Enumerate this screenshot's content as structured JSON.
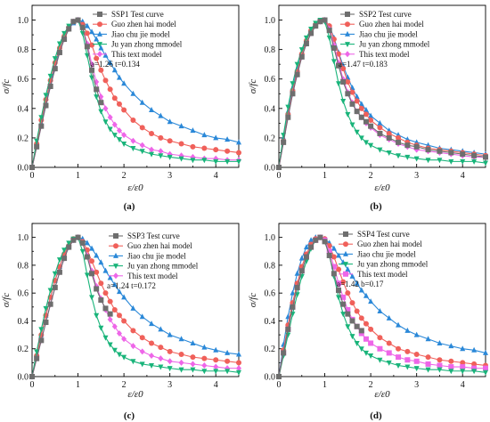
{
  "figure": {
    "colors": {
      "test": "#6e6e6e",
      "guo": "#f0605a",
      "jiao": "#2a88d8",
      "ju": "#19b47a",
      "this": "#ee66e8"
    }
  },
  "chart_data": [
    {
      "type": "line",
      "panel_label": "(a)",
      "xlabel": "ε/ε0",
      "ylabel": "σ/fc",
      "xlim": [
        0,
        4.5
      ],
      "ylim": [
        0,
        1.1
      ],
      "xticks": [
        "0",
        "1",
        "2",
        "3",
        "4"
      ],
      "yticks": [
        "0.0",
        "0.2",
        "0.4",
        "0.6",
        "0.8",
        "1.0"
      ],
      "legend_position": "top-right",
      "params_text": "a=1.26  t=0.134",
      "x": [
        0,
        0.1,
        0.2,
        0.3,
        0.4,
        0.5,
        0.6,
        0.7,
        0.8,
        0.9,
        1.0,
        1.1,
        1.2,
        1.3,
        1.4,
        1.5,
        1.6,
        1.7,
        1.8,
        1.9,
        2.0,
        2.2,
        2.4,
        2.6,
        2.8,
        3.0,
        3.25,
        3.5,
        3.75,
        4.0,
        4.25,
        4.5
      ],
      "series": [
        {
          "name": "SSP1 Test curve",
          "color_key": "test",
          "marker": "square",
          "x": [
            0,
            0.1,
            0.2,
            0.3,
            0.4,
            0.5,
            0.6,
            0.7,
            0.8,
            0.9,
            1.0,
            1.1,
            1.2,
            1.3,
            1.4,
            1.5
          ],
          "values": [
            0,
            0.14,
            0.28,
            0.42,
            0.55,
            0.67,
            0.78,
            0.87,
            0.94,
            0.99,
            1.0,
            0.95,
            0.82,
            0.66,
            0.53,
            0.44
          ]
        },
        {
          "name": "Guo zhen hai model",
          "color_key": "guo",
          "marker": "circle",
          "values": [
            0,
            0.16,
            0.32,
            0.46,
            0.59,
            0.71,
            0.81,
            0.89,
            0.95,
            0.99,
            1.0,
            0.97,
            0.91,
            0.83,
            0.74,
            0.66,
            0.59,
            0.53,
            0.47,
            0.43,
            0.39,
            0.32,
            0.27,
            0.23,
            0.2,
            0.18,
            0.16,
            0.14,
            0.13,
            0.12,
            0.11,
            0.1
          ]
        },
        {
          "name": "Jiao chu jie model",
          "color_key": "jiao",
          "marker": "triangle-up",
          "values": [
            0,
            0.15,
            0.3,
            0.44,
            0.57,
            0.69,
            0.79,
            0.87,
            0.94,
            0.98,
            1.0,
            0.99,
            0.96,
            0.92,
            0.87,
            0.81,
            0.76,
            0.71,
            0.66,
            0.61,
            0.57,
            0.5,
            0.44,
            0.39,
            0.35,
            0.31,
            0.28,
            0.25,
            0.22,
            0.2,
            0.19,
            0.17
          ]
        },
        {
          "name": "Ju yan zhong mmodel",
          "color_key": "ju",
          "marker": "triangle-down",
          "values": [
            0,
            0.18,
            0.34,
            0.49,
            0.62,
            0.74,
            0.84,
            0.91,
            0.96,
            0.99,
            1.0,
            0.91,
            0.76,
            0.61,
            0.48,
            0.38,
            0.31,
            0.26,
            0.22,
            0.19,
            0.16,
            0.13,
            0.11,
            0.09,
            0.08,
            0.07,
            0.06,
            0.05,
            0.05,
            0.04,
            0.04,
            0.04
          ]
        },
        {
          "name": "This text model",
          "color_key": "this",
          "marker": "diamond",
          "values": [
            0,
            0.14,
            0.28,
            0.42,
            0.55,
            0.67,
            0.78,
            0.87,
            0.94,
            0.99,
            1.0,
            0.95,
            0.84,
            0.7,
            0.58,
            0.48,
            0.4,
            0.34,
            0.29,
            0.25,
            0.22,
            0.18,
            0.15,
            0.12,
            0.11,
            0.09,
            0.08,
            0.07,
            0.06,
            0.06,
            0.05,
            0.05
          ]
        }
      ]
    },
    {
      "type": "line",
      "panel_label": "(b)",
      "xlabel": "ε/ε0",
      "ylabel": "σ/fc",
      "xlim": [
        0,
        4.5
      ],
      "ylim": [
        0,
        1.1
      ],
      "xticks": [
        "0",
        "1",
        "2",
        "3",
        "4"
      ],
      "yticks": [
        "0.0",
        "0.2",
        "0.4",
        "0.6",
        "0.8",
        "1.0"
      ],
      "legend_position": "top-right",
      "params_text": "a=1.47  t=0.183",
      "x": [
        0,
        0.1,
        0.2,
        0.3,
        0.4,
        0.5,
        0.6,
        0.7,
        0.8,
        0.9,
        1.0,
        1.1,
        1.2,
        1.3,
        1.4,
        1.5,
        1.6,
        1.7,
        1.8,
        1.9,
        2.0,
        2.2,
        2.4,
        2.6,
        2.8,
        3.0,
        3.25,
        3.5,
        3.75,
        4.0,
        4.25,
        4.5
      ],
      "series": [
        {
          "name": "SSP2 Test curve",
          "color_key": "test",
          "marker": "square",
          "values": [
            0,
            0.17,
            0.34,
            0.5,
            0.63,
            0.75,
            0.84,
            0.91,
            0.96,
            0.99,
            1.0,
            0.93,
            0.81,
            0.69,
            0.58,
            0.5,
            0.43,
            0.38,
            0.34,
            0.31,
            0.28,
            0.23,
            0.2,
            0.17,
            0.15,
            0.14,
            0.12,
            0.11,
            0.1,
            0.09,
            0.08,
            0.07
          ]
        },
        {
          "name": "Guo zhen hai model",
          "color_key": "guo",
          "marker": "circle",
          "values": [
            0,
            0.18,
            0.36,
            0.52,
            0.65,
            0.77,
            0.86,
            0.93,
            0.97,
            0.99,
            1.0,
            0.96,
            0.87,
            0.77,
            0.67,
            0.58,
            0.51,
            0.45,
            0.4,
            0.36,
            0.32,
            0.27,
            0.23,
            0.2,
            0.17,
            0.15,
            0.13,
            0.12,
            0.11,
            0.1,
            0.09,
            0.08
          ]
        },
        {
          "name": "Jiao chu jie model",
          "color_key": "jiao",
          "marker": "triangle-up",
          "values": [
            0,
            0.2,
            0.38,
            0.54,
            0.67,
            0.78,
            0.87,
            0.93,
            0.97,
            0.99,
            1.0,
            0.96,
            0.88,
            0.78,
            0.69,
            0.61,
            0.54,
            0.48,
            0.43,
            0.39,
            0.35,
            0.3,
            0.25,
            0.22,
            0.19,
            0.17,
            0.15,
            0.13,
            0.12,
            0.11,
            0.1,
            0.09
          ]
        },
        {
          "name": "Ju yan zhong mmodel",
          "color_key": "ju",
          "marker": "triangle-down",
          "values": [
            0,
            0.22,
            0.41,
            0.57,
            0.7,
            0.8,
            0.88,
            0.94,
            0.98,
            1.0,
            0.99,
            0.88,
            0.72,
            0.57,
            0.45,
            0.36,
            0.29,
            0.24,
            0.2,
            0.17,
            0.15,
            0.12,
            0.1,
            0.08,
            0.07,
            0.06,
            0.05,
            0.05,
            0.04,
            0.04,
            0.04,
            0.03
          ]
        },
        {
          "name": "This text model",
          "color_key": "this",
          "marker": "diamond",
          "values": [
            0,
            0.17,
            0.34,
            0.5,
            0.63,
            0.75,
            0.84,
            0.91,
            0.96,
            0.99,
            1.0,
            0.94,
            0.83,
            0.71,
            0.6,
            0.51,
            0.44,
            0.38,
            0.34,
            0.3,
            0.27,
            0.22,
            0.19,
            0.16,
            0.14,
            0.12,
            0.11,
            0.1,
            0.09,
            0.08,
            0.07,
            0.07
          ]
        }
      ]
    },
    {
      "type": "line",
      "panel_label": "(c)",
      "xlabel": "ε/ε0",
      "ylabel": "σ/fc",
      "xlim": [
        0,
        4.5
      ],
      "ylim": [
        0,
        1.1
      ],
      "xticks": [
        "0",
        "1",
        "2",
        "3",
        "4"
      ],
      "yticks": [
        "0.0",
        "0.2",
        "0.4",
        "0.6",
        "0.8",
        "1.0"
      ],
      "legend_position": "top-right",
      "params_text": "a=1.24  t=0.172",
      "x": [
        0,
        0.1,
        0.2,
        0.3,
        0.4,
        0.5,
        0.6,
        0.7,
        0.8,
        0.9,
        1.0,
        1.1,
        1.2,
        1.3,
        1.4,
        1.5,
        1.6,
        1.7,
        1.8,
        1.9,
        2.0,
        2.2,
        2.4,
        2.6,
        2.8,
        3.0,
        3.25,
        3.5,
        3.75,
        4.0,
        4.25,
        4.5
      ],
      "series": [
        {
          "name": "SSP3 Test curve",
          "color_key": "test",
          "marker": "square",
          "x": [
            0,
            0.1,
            0.2,
            0.3,
            0.4,
            0.5,
            0.6,
            0.7,
            0.8,
            0.9,
            1.0,
            1.1,
            1.2,
            1.3,
            1.4,
            1.5,
            1.6,
            1.7
          ],
          "values": [
            0,
            0.13,
            0.26,
            0.39,
            0.52,
            0.64,
            0.75,
            0.85,
            0.93,
            0.98,
            1.0,
            0.96,
            0.86,
            0.74,
            0.63,
            0.55,
            0.49,
            0.45
          ]
        },
        {
          "name": "Guo zhen hai model",
          "color_key": "guo",
          "marker": "circle",
          "values": [
            0,
            0.15,
            0.3,
            0.44,
            0.57,
            0.69,
            0.79,
            0.88,
            0.94,
            0.99,
            1.0,
            0.97,
            0.91,
            0.83,
            0.75,
            0.67,
            0.6,
            0.54,
            0.48,
            0.44,
            0.4,
            0.33,
            0.28,
            0.24,
            0.21,
            0.18,
            0.16,
            0.14,
            0.13,
            0.12,
            0.11,
            0.1
          ]
        },
        {
          "name": "Jiao chu jie model",
          "color_key": "jiao",
          "marker": "triangle-up",
          "values": [
            0,
            0.15,
            0.3,
            0.44,
            0.57,
            0.69,
            0.79,
            0.87,
            0.94,
            0.98,
            1.0,
            0.99,
            0.96,
            0.92,
            0.87,
            0.82,
            0.76,
            0.71,
            0.66,
            0.61,
            0.57,
            0.49,
            0.43,
            0.38,
            0.34,
            0.3,
            0.27,
            0.24,
            0.21,
            0.19,
            0.17,
            0.16
          ]
        },
        {
          "name": "Ju yan zhong mmodel",
          "color_key": "ju",
          "marker": "triangle-down",
          "values": [
            0,
            0.18,
            0.34,
            0.49,
            0.62,
            0.74,
            0.84,
            0.91,
            0.96,
            0.99,
            1.0,
            0.9,
            0.73,
            0.57,
            0.44,
            0.35,
            0.28,
            0.23,
            0.19,
            0.16,
            0.14,
            0.11,
            0.09,
            0.08,
            0.07,
            0.06,
            0.05,
            0.05,
            0.04,
            0.04,
            0.04,
            0.03
          ]
        },
        {
          "name": "This text model",
          "color_key": "this",
          "marker": "diamond",
          "values": [
            0,
            0.13,
            0.26,
            0.39,
            0.52,
            0.64,
            0.75,
            0.85,
            0.93,
            0.98,
            1.0,
            0.96,
            0.87,
            0.76,
            0.65,
            0.56,
            0.48,
            0.41,
            0.36,
            0.31,
            0.27,
            0.22,
            0.18,
            0.15,
            0.13,
            0.11,
            0.1,
            0.09,
            0.08,
            0.07,
            0.06,
            0.06
          ]
        }
      ]
    },
    {
      "type": "line",
      "panel_label": "(d)",
      "xlabel": "ε/ε0",
      "ylabel": "σ/fc",
      "xlim": [
        0,
        4.5
      ],
      "ylim": [
        0,
        1.1
      ],
      "xticks": [
        "0",
        "1",
        "2",
        "3",
        "4"
      ],
      "yticks": [
        "0.0",
        "0.2",
        "0.4",
        "0.6",
        "0.8",
        "1.0"
      ],
      "legend_position": "top-right",
      "params_text": "a=1.42  b=0.17",
      "x": [
        0,
        0.1,
        0.2,
        0.3,
        0.4,
        0.5,
        0.6,
        0.7,
        0.8,
        0.9,
        1.0,
        1.1,
        1.2,
        1.3,
        1.4,
        1.5,
        1.6,
        1.7,
        1.8,
        1.9,
        2.0,
        2.2,
        2.4,
        2.6,
        2.8,
        3.0,
        3.25,
        3.5,
        3.75,
        4.0,
        4.25,
        4.5
      ],
      "series": [
        {
          "name": "SSP4 Test curve",
          "color_key": "test",
          "marker": "square",
          "x": [
            0,
            0.1,
            0.2,
            0.3,
            0.4,
            0.5,
            0.6,
            0.7,
            0.8,
            0.9,
            1.0,
            1.1,
            1.2,
            1.3,
            1.4,
            1.5,
            1.6,
            1.7,
            1.8
          ],
          "values": [
            0,
            0.17,
            0.34,
            0.5,
            0.64,
            0.76,
            0.86,
            0.93,
            0.98,
            1.0,
            0.97,
            0.87,
            0.74,
            0.62,
            0.52,
            0.45,
            0.4,
            0.36,
            0.33
          ]
        },
        {
          "name": "Guo zhen hai model",
          "color_key": "guo",
          "marker": "circle",
          "values": [
            0,
            0.19,
            0.37,
            0.53,
            0.67,
            0.79,
            0.88,
            0.95,
            0.99,
            1.0,
            0.99,
            0.94,
            0.86,
            0.77,
            0.68,
            0.6,
            0.53,
            0.47,
            0.42,
            0.38,
            0.34,
            0.28,
            0.24,
            0.2,
            0.18,
            0.16,
            0.14,
            0.12,
            0.11,
            0.1,
            0.09,
            0.08
          ]
        },
        {
          "name": "Jiao chu jie model",
          "color_key": "jiao",
          "marker": "triangle-up",
          "values": [
            0,
            0.23,
            0.43,
            0.6,
            0.74,
            0.85,
            0.93,
            0.98,
            1.0,
            1.0,
            0.99,
            0.96,
            0.92,
            0.87,
            0.82,
            0.77,
            0.72,
            0.67,
            0.62,
            0.58,
            0.54,
            0.47,
            0.42,
            0.37,
            0.33,
            0.3,
            0.27,
            0.24,
            0.22,
            0.2,
            0.19,
            0.17
          ]
        },
        {
          "name": "Ju yan zhong mmodel",
          "color_key": "ju",
          "marker": "triangle-down",
          "values": [
            0,
            0.15,
            0.3,
            0.45,
            0.59,
            0.72,
            0.83,
            0.92,
            0.98,
            1.0,
            0.97,
            0.87,
            0.72,
            0.57,
            0.45,
            0.36,
            0.29,
            0.24,
            0.2,
            0.17,
            0.15,
            0.12,
            0.1,
            0.08,
            0.07,
            0.06,
            0.05,
            0.05,
            0.04,
            0.04,
            0.04,
            0.03
          ]
        },
        {
          "name": "This text model",
          "color_key": "this",
          "marker": "square",
          "values": [
            0,
            0.17,
            0.34,
            0.5,
            0.64,
            0.76,
            0.86,
            0.93,
            0.98,
            1.0,
            0.98,
            0.9,
            0.79,
            0.67,
            0.57,
            0.48,
            0.41,
            0.36,
            0.31,
            0.27,
            0.24,
            0.2,
            0.17,
            0.14,
            0.12,
            0.11,
            0.09,
            0.08,
            0.07,
            0.07,
            0.06,
            0.06
          ]
        }
      ]
    }
  ]
}
